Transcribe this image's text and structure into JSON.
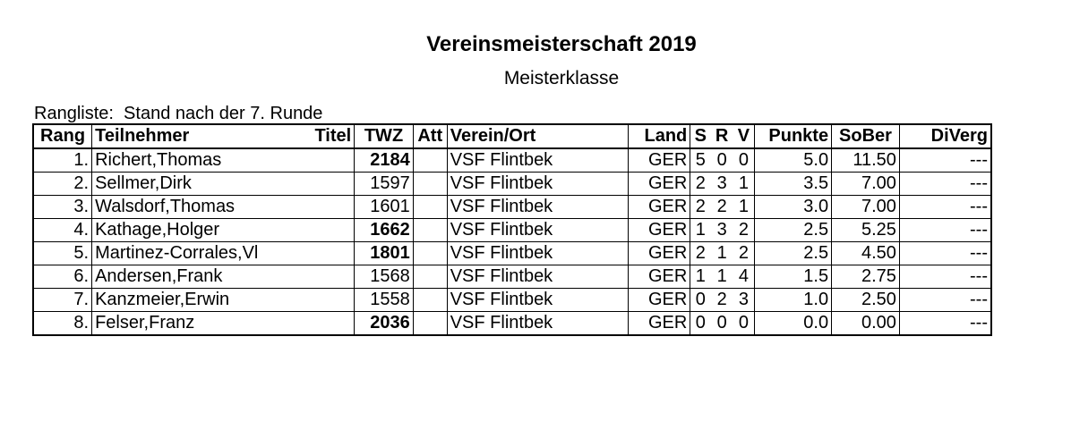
{
  "header": {
    "title": "Vereinsmeisterschaft 2019",
    "subtitle": "Meisterklasse",
    "caption": "Rangliste:  Stand nach der 7. Runde"
  },
  "table": {
    "columns": {
      "rank": "Rang",
      "name": "Teilnehmer",
      "title": "Titel",
      "rating": "TWZ",
      "att": "Att",
      "club": "Verein/Ort",
      "country": "Land",
      "wins": "S",
      "draws": "R",
      "losses": "V",
      "points": "Punkte",
      "sober": "SoBer",
      "diverg": "DiVerg"
    },
    "rows": [
      {
        "rank": "1.",
        "name": "Richert,Thomas",
        "title": "",
        "rating": "2184",
        "rating_bold": true,
        "att": "",
        "club": "VSF Flintbek",
        "country": "GER",
        "wins": "5",
        "draws": "0",
        "losses": "0",
        "points": "5.0",
        "sober": "11.50",
        "diverg": "---"
      },
      {
        "rank": "2.",
        "name": "Sellmer,Dirk",
        "title": "",
        "rating": "1597",
        "rating_bold": false,
        "att": "",
        "club": "VSF Flintbek",
        "country": "GER",
        "wins": "2",
        "draws": "3",
        "losses": "1",
        "points": "3.5",
        "sober": "7.00",
        "diverg": "---"
      },
      {
        "rank": "3.",
        "name": "Walsdorf,Thomas",
        "title": "",
        "rating": "1601",
        "rating_bold": false,
        "att": "",
        "club": "VSF Flintbek",
        "country": "GER",
        "wins": "2",
        "draws": "2",
        "losses": "1",
        "points": "3.0",
        "sober": "7.00",
        "diverg": "---"
      },
      {
        "rank": "4.",
        "name": "Kathage,Holger",
        "title": "",
        "rating": "1662",
        "rating_bold": true,
        "att": "",
        "club": "VSF Flintbek",
        "country": "GER",
        "wins": "1",
        "draws": "3",
        "losses": "2",
        "points": "2.5",
        "sober": "5.25",
        "diverg": "---"
      },
      {
        "rank": "5.",
        "name": "Martinez-Corrales,Vl",
        "title": "",
        "rating": "1801",
        "rating_bold": true,
        "att": "",
        "club": "VSF Flintbek",
        "country": "GER",
        "wins": "2",
        "draws": "1",
        "losses": "2",
        "points": "2.5",
        "sober": "4.50",
        "diverg": "---"
      },
      {
        "rank": "6.",
        "name": "Andersen,Frank",
        "title": "",
        "rating": "1568",
        "rating_bold": false,
        "att": "",
        "club": "VSF Flintbek",
        "country": "GER",
        "wins": "1",
        "draws": "1",
        "losses": "4",
        "points": "1.5",
        "sober": "2.75",
        "diverg": "---"
      },
      {
        "rank": "7.",
        "name": "Kanzmeier,Erwin",
        "title": "",
        "rating": "1558",
        "rating_bold": false,
        "att": "",
        "club": "VSF Flintbek",
        "country": "GER",
        "wins": "0",
        "draws": "2",
        "losses": "3",
        "points": "1.0",
        "sober": "2.50",
        "diverg": "---"
      },
      {
        "rank": "8.",
        "name": "Felser,Franz",
        "title": "",
        "rating": "2036",
        "rating_bold": true,
        "att": "",
        "club": "VSF Flintbek",
        "country": "GER",
        "wins": "0",
        "draws": "0",
        "losses": "0",
        "points": "0.0",
        "sober": "0.00",
        "diverg": "---"
      }
    ]
  }
}
